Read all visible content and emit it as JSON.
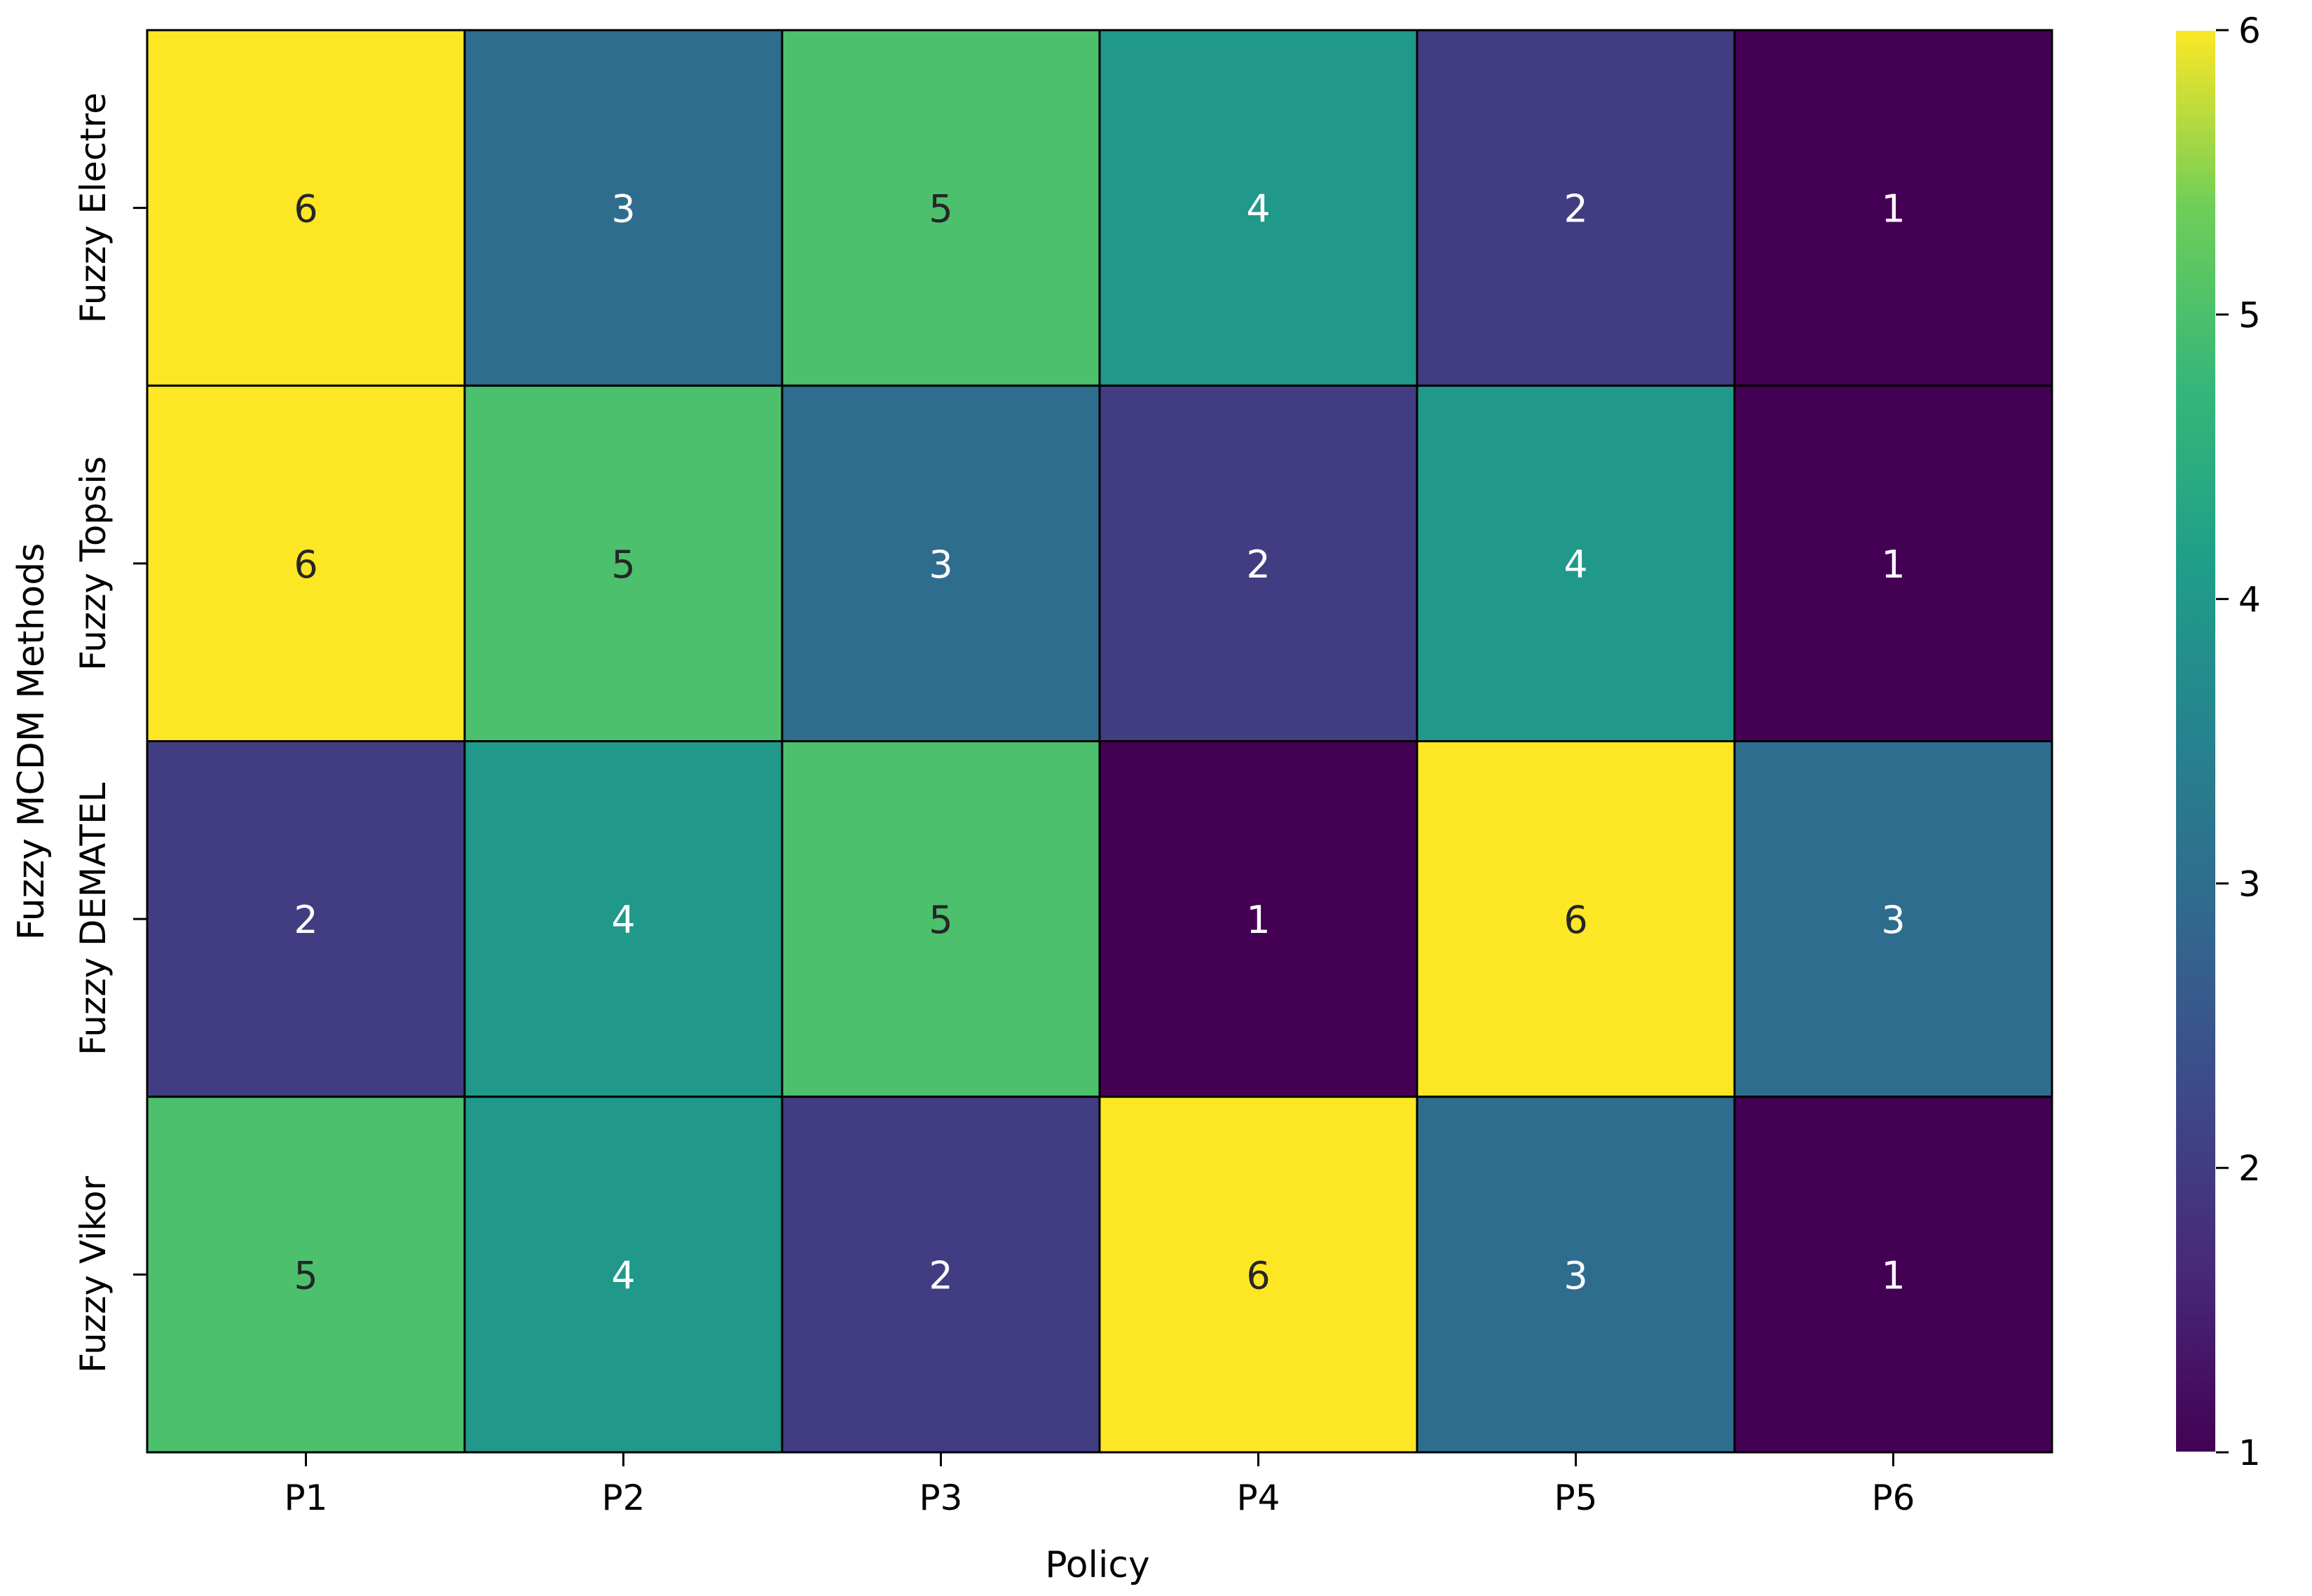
{
  "chart_data": {
    "type": "heatmap",
    "title": "",
    "xlabel": "Policy",
    "ylabel": "Fuzzy MCDM Methods",
    "x_categories": [
      "P1",
      "P2",
      "P3",
      "P4",
      "P5",
      "P6"
    ],
    "y_categories": [
      "Fuzzy Electre",
      "Fuzzy Topsis",
      "Fuzzy DEMATEL",
      "Fuzzy Vikor"
    ],
    "values": [
      [
        6,
        3,
        5,
        4,
        2,
        1
      ],
      [
        6,
        5,
        3,
        2,
        4,
        1
      ],
      [
        2,
        4,
        5,
        1,
        6,
        3
      ],
      [
        5,
        4,
        2,
        6,
        3,
        1
      ]
    ],
    "colorbar": {
      "range": [
        1,
        6
      ],
      "ticks": [
        1,
        2,
        3,
        4,
        5,
        6
      ],
      "colormap": "viridis"
    },
    "annotations": true
  }
}
